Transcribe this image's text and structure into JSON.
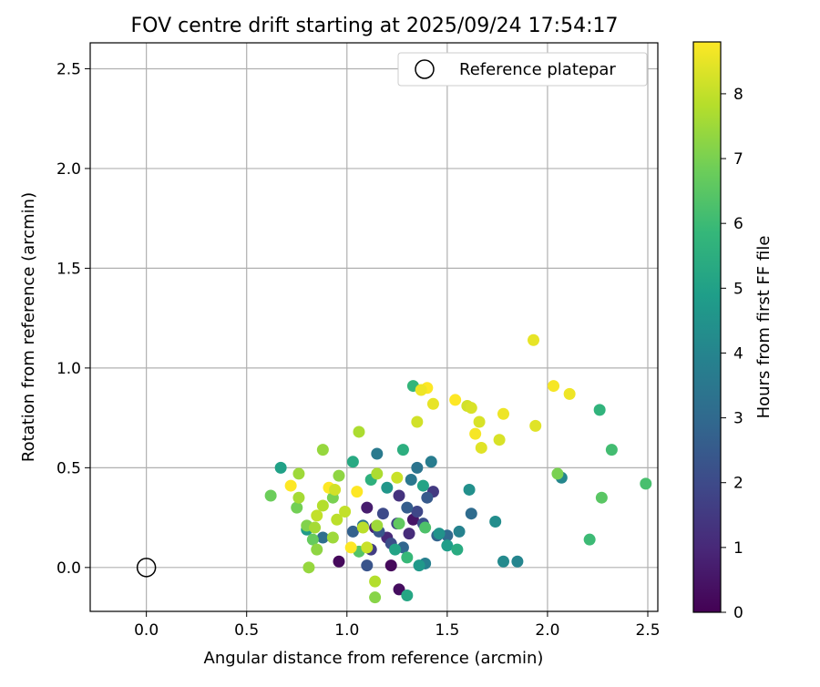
{
  "chart_data": {
    "type": "scatter",
    "title": "FOV centre drift starting at 2025/09/24 17:54:17",
    "xlabel": "Angular distance from reference (arcmin)",
    "ylabel": "Rotation from reference (arcmin)",
    "xlim": [
      -0.28,
      2.55
    ],
    "ylim": [
      -0.22,
      2.63
    ],
    "xticks": [
      "0.0",
      "0.5",
      "1.0",
      "1.5",
      "2.0",
      "2.5"
    ],
    "yticks": [
      "0.0",
      "0.5",
      "1.0",
      "1.5",
      "2.0",
      "2.5"
    ],
    "grid": true,
    "legend": {
      "position": "top-right",
      "entries": [
        "Reference platepar"
      ]
    },
    "reference_point": {
      "x": 0.0,
      "y": 0.0
    },
    "colorbar": {
      "label": "Hours from first FF file",
      "range": [
        0,
        8.8
      ],
      "ticks": [
        "0",
        "1",
        "2",
        "3",
        "4",
        "5",
        "6",
        "7",
        "8"
      ],
      "colormap": [
        "#440154",
        "#482878",
        "#3e4989",
        "#31688e",
        "#26828e",
        "#1f9e89",
        "#35b779",
        "#6ece58",
        "#b5de2b",
        "#fde725"
      ]
    },
    "points": [
      [
        0.96,
        0.03,
        0.2
      ],
      [
        1.22,
        0.01,
        0.2
      ],
      [
        1.26,
        -0.11,
        0.3
      ],
      [
        1.33,
        0.24,
        0.5
      ],
      [
        1.1,
        0.3,
        0.7
      ],
      [
        1.14,
        0.2,
        0.8
      ],
      [
        1.2,
        0.15,
        1.0
      ],
      [
        1.31,
        0.17,
        1.1
      ],
      [
        1.26,
        0.36,
        1.3
      ],
      [
        1.43,
        0.38,
        1.5
      ],
      [
        1.12,
        0.09,
        1.6
      ],
      [
        1.25,
        0.22,
        1.8
      ],
      [
        1.35,
        0.28,
        1.9
      ],
      [
        1.18,
        0.27,
        2.0
      ],
      [
        1.22,
        0.12,
        2.1
      ],
      [
        1.38,
        0.22,
        2.2
      ],
      [
        1.1,
        0.01,
        2.3
      ],
      [
        1.16,
        0.18,
        2.4
      ],
      [
        1.4,
        0.35,
        2.5
      ],
      [
        1.3,
        0.3,
        2.6
      ],
      [
        1.03,
        0.18,
        2.7
      ],
      [
        1.45,
        0.16,
        2.8
      ],
      [
        1.28,
        0.1,
        2.9
      ],
      [
        1.5,
        0.16,
        3.0
      ],
      [
        1.62,
        0.27,
        3.1
      ],
      [
        0.88,
        0.15,
        3.2
      ],
      [
        1.08,
        0.21,
        3.3
      ],
      [
        1.35,
        0.5,
        3.4
      ],
      [
        1.32,
        0.44,
        3.5
      ],
      [
        1.15,
        0.57,
        3.6
      ],
      [
        1.42,
        0.53,
        3.7
      ],
      [
        1.39,
        0.02,
        3.8
      ],
      [
        1.56,
        0.18,
        3.9
      ],
      [
        1.85,
        0.03,
        4.0
      ],
      [
        2.07,
        0.45,
        4.1
      ],
      [
        1.78,
        0.03,
        4.2
      ],
      [
        1.74,
        0.23,
        4.3
      ],
      [
        1.61,
        0.39,
        4.4
      ],
      [
        1.46,
        0.17,
        4.5
      ],
      [
        1.2,
        0.4,
        4.6
      ],
      [
        1.36,
        0.01,
        4.7
      ],
      [
        0.8,
        0.19,
        4.8
      ],
      [
        1.5,
        0.11,
        4.9
      ],
      [
        0.67,
        0.5,
        5.0
      ],
      [
        1.38,
        0.41,
        5.1
      ],
      [
        1.24,
        0.09,
        5.1
      ],
      [
        1.3,
        -0.14,
        5.2
      ],
      [
        1.03,
        0.53,
        5.3
      ],
      [
        1.55,
        0.09,
        5.4
      ],
      [
        1.28,
        0.59,
        5.5
      ],
      [
        1.12,
        0.44,
        5.6
      ],
      [
        2.26,
        0.79,
        5.7
      ],
      [
        1.33,
        0.91,
        5.8
      ],
      [
        1.3,
        0.05,
        5.9
      ],
      [
        2.21,
        0.14,
        6.0
      ],
      [
        2.32,
        0.59,
        6.1
      ],
      [
        2.49,
        0.42,
        6.2
      ],
      [
        1.39,
        0.2,
        6.3
      ],
      [
        1.06,
        0.08,
        6.4
      ],
      [
        2.27,
        0.35,
        6.5
      ],
      [
        1.26,
        0.22,
        6.6
      ],
      [
        0.83,
        0.14,
        6.7
      ],
      [
        0.62,
        0.36,
        6.8
      ],
      [
        0.75,
        0.3,
        6.9
      ],
      [
        0.93,
        0.35,
        7.0
      ],
      [
        0.8,
        0.21,
        7.1
      ],
      [
        1.14,
        -0.15,
        7.2
      ],
      [
        0.85,
        0.09,
        7.3
      ],
      [
        0.96,
        0.46,
        7.3
      ],
      [
        0.81,
        0.0,
        7.4
      ],
      [
        0.88,
        0.59,
        7.4
      ],
      [
        1.15,
        0.21,
        7.5
      ],
      [
        0.93,
        0.15,
        7.5
      ],
      [
        0.76,
        0.35,
        7.6
      ],
      [
        0.84,
        0.2,
        7.6
      ],
      [
        1.15,
        0.47,
        7.7
      ],
      [
        1.06,
        0.68,
        7.7
      ],
      [
        1.14,
        -0.07,
        7.8
      ],
      [
        0.88,
        0.31,
        7.8
      ],
      [
        1.08,
        0.2,
        7.9
      ],
      [
        0.95,
        0.24,
        7.9
      ],
      [
        0.85,
        0.26,
        8.0
      ],
      [
        0.99,
        0.28,
        8.0
      ],
      [
        1.1,
        0.1,
        8.1
      ],
      [
        1.25,
        0.45,
        8.1
      ],
      [
        1.35,
        0.73,
        8.2
      ],
      [
        1.6,
        0.81,
        8.2
      ],
      [
        1.66,
        0.73,
        8.3
      ],
      [
        1.76,
        0.64,
        8.3
      ],
      [
        1.94,
        0.71,
        8.4
      ],
      [
        1.67,
        0.6,
        8.4
      ],
      [
        1.43,
        0.82,
        8.5
      ],
      [
        1.93,
        1.14,
        8.5
      ],
      [
        1.78,
        0.77,
        8.6
      ],
      [
        2.11,
        0.87,
        8.6
      ],
      [
        2.03,
        0.91,
        8.7
      ],
      [
        1.64,
        0.67,
        8.7
      ],
      [
        1.4,
        0.9,
        8.8
      ],
      [
        1.54,
        0.84,
        8.8
      ],
      [
        1.02,
        0.1,
        8.8
      ],
      [
        1.05,
        0.38,
        8.8
      ],
      [
        0.91,
        0.4,
        8.8
      ],
      [
        0.72,
        0.41,
        8.8
      ],
      [
        0.76,
        0.47,
        7.5
      ],
      [
        2.05,
        0.47,
        7.0
      ],
      [
        0.94,
        0.39,
        8.2
      ],
      [
        1.37,
        0.89,
        8.6
      ],
      [
        1.62,
        0.8,
        8.3
      ]
    ]
  }
}
